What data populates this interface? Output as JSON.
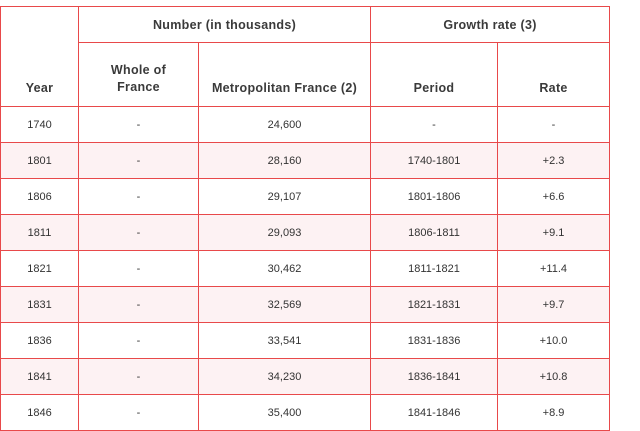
{
  "table": {
    "headers": {
      "year": "Year",
      "number_group": "Number (in thousands)",
      "growth_group": "Growth rate (3)",
      "whole_line1": "Whole of",
      "whole_line2": "France",
      "metropolitan": "Metropolitan France (2)",
      "period": "Period",
      "rate": "Rate"
    },
    "rows": [
      {
        "year": "1740",
        "whole": "-",
        "metro": "24,600",
        "period": "-",
        "rate": "-"
      },
      {
        "year": "1801",
        "whole": "-",
        "metro": "28,160",
        "period": "1740-1801",
        "rate": "+2.3"
      },
      {
        "year": "1806",
        "whole": "-",
        "metro": "29,107",
        "period": "1801-1806",
        "rate": "+6.6"
      },
      {
        "year": "1811",
        "whole": "-",
        "metro": "29,093",
        "period": "1806-1811",
        "rate": "+9.1"
      },
      {
        "year": "1821",
        "whole": "-",
        "metro": "30,462",
        "period": "1811-1821",
        "rate": "+11.4"
      },
      {
        "year": "1831",
        "whole": "-",
        "metro": "32,569",
        "period": "1821-1831",
        "rate": "+9.7"
      },
      {
        "year": "1836",
        "whole": "-",
        "metro": "33,541",
        "period": "1831-1836",
        "rate": "+10.0"
      },
      {
        "year": "1841",
        "whole": "-",
        "metro": "34,230",
        "period": "1836-1841",
        "rate": "+10.8"
      },
      {
        "year": "1846",
        "whole": "-",
        "metro": "35,400",
        "period": "1841-1846",
        "rate": "+8.9"
      }
    ],
    "colors": {
      "border": "#e8494a",
      "stripe": "#fdf2f3",
      "text": "#333333"
    }
  }
}
